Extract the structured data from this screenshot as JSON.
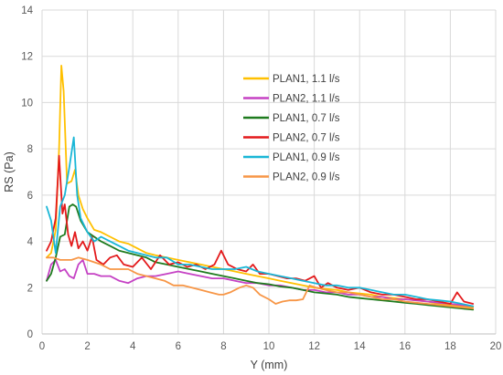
{
  "chart_data": {
    "type": "line",
    "xlabel": "Y (mm)",
    "ylabel": "RS (Pa)",
    "xlim": [
      0,
      20
    ],
    "ylim": [
      0,
      14
    ],
    "x_ticks": [
      0,
      2,
      4,
      6,
      8,
      10,
      12,
      14,
      16,
      18,
      20
    ],
    "y_ticks": [
      0,
      2,
      4,
      6,
      8,
      10,
      12,
      14
    ],
    "grid": "vertical-and-horizontal",
    "legend": "upper-right",
    "series": [
      {
        "name": "PLAN1, 1.1 l/s",
        "color": "#FFC000",
        "points": [
          [
            0.2,
            3.3
          ],
          [
            0.4,
            3.5
          ],
          [
            0.6,
            4.5
          ],
          [
            0.75,
            8.0
          ],
          [
            0.85,
            11.6
          ],
          [
            0.95,
            10.5
          ],
          [
            1.1,
            6.5
          ],
          [
            1.3,
            6.6
          ],
          [
            1.45,
            7.1
          ],
          [
            1.6,
            6.0
          ],
          [
            1.8,
            5.4
          ],
          [
            2.0,
            5.0
          ],
          [
            2.3,
            4.5
          ],
          [
            2.6,
            4.4
          ],
          [
            3.0,
            4.2
          ],
          [
            3.4,
            4.0
          ],
          [
            3.8,
            3.9
          ],
          [
            4.2,
            3.7
          ],
          [
            4.6,
            3.5
          ],
          [
            5.0,
            3.4
          ],
          [
            5.5,
            3.3
          ],
          [
            6.0,
            3.2
          ],
          [
            6.5,
            3.1
          ],
          [
            7.0,
            3.0
          ],
          [
            7.5,
            2.9
          ],
          [
            8.0,
            2.8
          ],
          [
            8.5,
            2.7
          ],
          [
            9.0,
            2.6
          ],
          [
            9.5,
            2.5
          ],
          [
            10.0,
            2.4
          ],
          [
            10.5,
            2.3
          ],
          [
            11.0,
            2.2
          ],
          [
            11.5,
            2.1
          ],
          [
            12.0,
            2.0
          ],
          [
            12.5,
            1.95
          ],
          [
            13.0,
            1.9
          ],
          [
            13.5,
            1.8
          ],
          [
            14.0,
            1.75
          ],
          [
            14.5,
            1.7
          ],
          [
            15.0,
            1.6
          ],
          [
            15.5,
            1.55
          ],
          [
            16.0,
            1.5
          ],
          [
            16.5,
            1.45
          ],
          [
            17.0,
            1.4
          ],
          [
            17.5,
            1.3
          ],
          [
            18.0,
            1.25
          ],
          [
            18.5,
            1.2
          ],
          [
            19.0,
            1.15
          ]
        ]
      },
      {
        "name": "PLAN2, 1.1 l/s",
        "color": "#C541C4",
        "points": [
          [
            0.2,
            2.3
          ],
          [
            0.4,
            3.0
          ],
          [
            0.6,
            3.2
          ],
          [
            0.8,
            2.7
          ],
          [
            1.0,
            2.8
          ],
          [
            1.2,
            2.5
          ],
          [
            1.4,
            2.4
          ],
          [
            1.6,
            3.0
          ],
          [
            1.8,
            3.2
          ],
          [
            2.0,
            2.6
          ],
          [
            2.3,
            2.6
          ],
          [
            2.6,
            2.5
          ],
          [
            3.0,
            2.5
          ],
          [
            3.4,
            2.3
          ],
          [
            3.8,
            2.2
          ],
          [
            4.2,
            2.4
          ],
          [
            4.6,
            2.5
          ],
          [
            5.0,
            2.5
          ],
          [
            5.5,
            2.6
          ],
          [
            6.0,
            2.7
          ],
          [
            6.5,
            2.6
          ],
          [
            7.0,
            2.5
          ],
          [
            7.5,
            2.4
          ],
          [
            8.0,
            2.4
          ],
          [
            8.5,
            2.3
          ],
          [
            9.0,
            2.2
          ],
          [
            9.5,
            2.2
          ],
          [
            10.0,
            2.1
          ],
          [
            10.5,
            2.1
          ],
          [
            11.0,
            2.0
          ],
          [
            11.5,
            1.9
          ],
          [
            12.0,
            1.9
          ],
          [
            12.5,
            1.8
          ],
          [
            13.0,
            1.8
          ],
          [
            13.5,
            1.7
          ],
          [
            14.0,
            1.7
          ],
          [
            14.5,
            1.6
          ],
          [
            15.0,
            1.6
          ],
          [
            15.5,
            1.5
          ],
          [
            16.0,
            1.5
          ],
          [
            16.5,
            1.45
          ],
          [
            17.0,
            1.4
          ],
          [
            17.5,
            1.35
          ],
          [
            18.0,
            1.3
          ],
          [
            18.5,
            1.25
          ],
          [
            19.0,
            1.2
          ]
        ]
      },
      {
        "name": "PLAN1, 0.7 l/s",
        "color": "#1E7B1E",
        "points": [
          [
            0.2,
            2.3
          ],
          [
            0.4,
            2.6
          ],
          [
            0.6,
            3.3
          ],
          [
            0.8,
            4.2
          ],
          [
            1.0,
            4.3
          ],
          [
            1.2,
            5.5
          ],
          [
            1.35,
            5.6
          ],
          [
            1.5,
            5.5
          ],
          [
            1.7,
            4.9
          ],
          [
            2.0,
            4.4
          ],
          [
            2.3,
            4.2
          ],
          [
            2.6,
            4.0
          ],
          [
            3.0,
            3.8
          ],
          [
            3.4,
            3.6
          ],
          [
            3.8,
            3.5
          ],
          [
            4.2,
            3.4
          ],
          [
            4.6,
            3.3
          ],
          [
            5.0,
            3.1
          ],
          [
            5.5,
            3.0
          ],
          [
            6.0,
            2.9
          ],
          [
            6.5,
            2.8
          ],
          [
            7.0,
            2.7
          ],
          [
            7.5,
            2.6
          ],
          [
            8.0,
            2.5
          ],
          [
            8.5,
            2.4
          ],
          [
            9.0,
            2.3
          ],
          [
            9.5,
            2.2
          ],
          [
            10.0,
            2.15
          ],
          [
            10.5,
            2.05
          ],
          [
            11.0,
            2.0
          ],
          [
            11.5,
            1.9
          ],
          [
            12.0,
            1.8
          ],
          [
            12.5,
            1.75
          ],
          [
            13.0,
            1.7
          ],
          [
            13.5,
            1.6
          ],
          [
            14.0,
            1.55
          ],
          [
            14.5,
            1.5
          ],
          [
            15.0,
            1.45
          ],
          [
            15.5,
            1.4
          ],
          [
            16.0,
            1.35
          ],
          [
            16.5,
            1.3
          ],
          [
            17.0,
            1.25
          ],
          [
            17.5,
            1.2
          ],
          [
            18.0,
            1.15
          ],
          [
            18.5,
            1.1
          ],
          [
            19.0,
            1.05
          ]
        ]
      },
      {
        "name": "PLAN2, 0.7 l/s",
        "color": "#E31A1C",
        "points": [
          [
            0.2,
            3.6
          ],
          [
            0.4,
            4.0
          ],
          [
            0.6,
            5.0
          ],
          [
            0.75,
            7.7
          ],
          [
            0.9,
            5.2
          ],
          [
            1.0,
            5.6
          ],
          [
            1.15,
            4.3
          ],
          [
            1.3,
            3.8
          ],
          [
            1.45,
            4.4
          ],
          [
            1.6,
            3.7
          ],
          [
            1.8,
            4.0
          ],
          [
            2.0,
            3.6
          ],
          [
            2.2,
            4.2
          ],
          [
            2.4,
            3.2
          ],
          [
            2.7,
            3.0
          ],
          [
            3.0,
            3.3
          ],
          [
            3.3,
            3.4
          ],
          [
            3.6,
            3.0
          ],
          [
            4.0,
            2.9
          ],
          [
            4.4,
            3.3
          ],
          [
            4.8,
            2.8
          ],
          [
            5.2,
            3.4
          ],
          [
            5.6,
            3.0
          ],
          [
            6.0,
            3.1
          ],
          [
            6.4,
            2.9
          ],
          [
            6.8,
            3.0
          ],
          [
            7.2,
            2.8
          ],
          [
            7.6,
            3.0
          ],
          [
            7.9,
            3.6
          ],
          [
            8.2,
            3.0
          ],
          [
            8.6,
            2.8
          ],
          [
            9.0,
            2.7
          ],
          [
            9.3,
            3.0
          ],
          [
            9.6,
            2.6
          ],
          [
            10.0,
            2.6
          ],
          [
            10.4,
            2.5
          ],
          [
            10.8,
            2.4
          ],
          [
            11.2,
            2.4
          ],
          [
            11.6,
            2.3
          ],
          [
            12.0,
            2.5
          ],
          [
            12.3,
            2.0
          ],
          [
            12.6,
            2.2
          ],
          [
            13.0,
            2.0
          ],
          [
            13.5,
            1.9
          ],
          [
            14.0,
            2.0
          ],
          [
            14.5,
            1.8
          ],
          [
            15.0,
            1.7
          ],
          [
            15.5,
            1.7
          ],
          [
            16.0,
            1.6
          ],
          [
            16.5,
            1.5
          ],
          [
            17.0,
            1.5
          ],
          [
            17.5,
            1.4
          ],
          [
            18.0,
            1.3
          ],
          [
            18.3,
            1.8
          ],
          [
            18.6,
            1.4
          ],
          [
            19.0,
            1.3
          ]
        ]
      },
      {
        "name": "PLAN1, 0.9 l/s",
        "color": "#19B6D6",
        "points": [
          [
            0.2,
            5.5
          ],
          [
            0.4,
            4.9
          ],
          [
            0.6,
            3.5
          ],
          [
            0.8,
            5.5
          ],
          [
            1.0,
            6.0
          ],
          [
            1.2,
            7.2
          ],
          [
            1.4,
            8.5
          ],
          [
            1.55,
            6.0
          ],
          [
            1.7,
            5.0
          ],
          [
            2.0,
            4.4
          ],
          [
            2.3,
            4.0
          ],
          [
            2.6,
            4.2
          ],
          [
            3.0,
            4.0
          ],
          [
            3.4,
            3.8
          ],
          [
            3.8,
            3.6
          ],
          [
            4.2,
            3.5
          ],
          [
            4.6,
            3.4
          ],
          [
            5.0,
            3.3
          ],
          [
            5.5,
            3.3
          ],
          [
            6.0,
            3.0
          ],
          [
            6.5,
            3.0
          ],
          [
            7.0,
            2.9
          ],
          [
            7.5,
            2.8
          ],
          [
            8.0,
            2.8
          ],
          [
            8.5,
            2.8
          ],
          [
            9.0,
            2.9
          ],
          [
            9.5,
            2.7
          ],
          [
            10.0,
            2.6
          ],
          [
            10.5,
            2.5
          ],
          [
            11.0,
            2.4
          ],
          [
            11.5,
            2.3
          ],
          [
            12.0,
            2.2
          ],
          [
            12.5,
            2.1
          ],
          [
            13.0,
            2.1
          ],
          [
            13.5,
            2.0
          ],
          [
            14.0,
            2.0
          ],
          [
            14.5,
            1.9
          ],
          [
            15.0,
            1.8
          ],
          [
            15.5,
            1.7
          ],
          [
            16.0,
            1.7
          ],
          [
            16.5,
            1.6
          ],
          [
            17.0,
            1.5
          ],
          [
            17.5,
            1.45
          ],
          [
            18.0,
            1.4
          ],
          [
            18.5,
            1.3
          ],
          [
            19.0,
            1.2
          ]
        ]
      },
      {
        "name": "PLAN2, 0.9 l/s",
        "color": "#F79646",
        "points": [
          [
            0.2,
            3.3
          ],
          [
            0.5,
            3.3
          ],
          [
            0.8,
            3.2
          ],
          [
            1.0,
            3.2
          ],
          [
            1.3,
            3.2
          ],
          [
            1.6,
            3.3
          ],
          [
            2.0,
            3.2
          ],
          [
            2.3,
            3.1
          ],
          [
            2.6,
            3.0
          ],
          [
            3.0,
            2.8
          ],
          [
            3.4,
            2.8
          ],
          [
            3.8,
            2.8
          ],
          [
            4.2,
            2.6
          ],
          [
            4.6,
            2.5
          ],
          [
            5.0,
            2.4
          ],
          [
            5.4,
            2.3
          ],
          [
            5.8,
            2.1
          ],
          [
            6.2,
            2.1
          ],
          [
            6.6,
            2.0
          ],
          [
            7.0,
            1.9
          ],
          [
            7.4,
            1.8
          ],
          [
            7.8,
            1.7
          ],
          [
            8.0,
            1.7
          ],
          [
            8.3,
            1.8
          ],
          [
            8.7,
            2.0
          ],
          [
            9.0,
            2.1
          ],
          [
            9.3,
            2.0
          ],
          [
            9.6,
            1.7
          ],
          [
            10.0,
            1.5
          ],
          [
            10.3,
            1.3
          ],
          [
            10.6,
            1.4
          ],
          [
            10.9,
            1.45
          ],
          [
            11.2,
            1.45
          ],
          [
            11.5,
            1.5
          ],
          [
            11.8,
            2.1
          ],
          [
            12.1,
            2.0
          ],
          [
            12.5,
            1.9
          ],
          [
            13.0,
            1.8
          ],
          [
            13.5,
            1.8
          ],
          [
            14.0,
            1.7
          ],
          [
            14.5,
            1.6
          ],
          [
            15.0,
            1.5
          ],
          [
            15.5,
            1.5
          ],
          [
            16.0,
            1.4
          ],
          [
            16.5,
            1.35
          ],
          [
            17.0,
            1.3
          ],
          [
            17.5,
            1.25
          ],
          [
            18.0,
            1.2
          ],
          [
            18.5,
            1.15
          ],
          [
            19.0,
            1.1
          ]
        ]
      }
    ]
  }
}
